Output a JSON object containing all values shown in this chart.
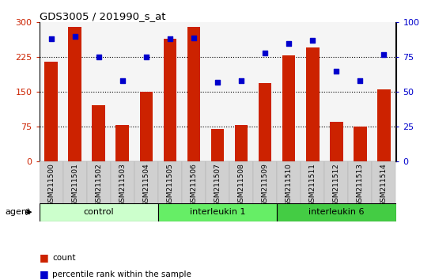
{
  "title": "GDS3005 / 201990_s_at",
  "samples": [
    "GSM211500",
    "GSM211501",
    "GSM211502",
    "GSM211503",
    "GSM211504",
    "GSM211505",
    "GSM211506",
    "GSM211507",
    "GSM211508",
    "GSM211509",
    "GSM211510",
    "GSM211511",
    "GSM211512",
    "GSM211513",
    "GSM211514"
  ],
  "counts": [
    215,
    290,
    120,
    78,
    150,
    265,
    290,
    70,
    78,
    168,
    228,
    245,
    85,
    75,
    155
  ],
  "percentile_ranks": [
    88,
    90,
    75,
    58,
    75,
    88,
    89,
    57,
    58,
    78,
    85,
    87,
    65,
    58,
    77
  ],
  "groups": [
    {
      "label": "control",
      "start": 0,
      "end": 5,
      "color": "#ccffcc"
    },
    {
      "label": "interleukin 1",
      "start": 5,
      "end": 10,
      "color": "#66ee66"
    },
    {
      "label": "interleukin 6",
      "start": 10,
      "end": 15,
      "color": "#44cc44"
    }
  ],
  "bar_color": "#cc2200",
  "dot_color": "#0000cc",
  "ylim_left": [
    0,
    300
  ],
  "ylim_right": [
    0,
    100
  ],
  "yticks_left": [
    0,
    75,
    150,
    225,
    300
  ],
  "yticks_right": [
    0,
    25,
    50,
    75,
    100
  ],
  "grid_values": [
    75,
    150,
    225
  ],
  "plot_bg": "#f5f5f5",
  "tick_label_fontsize": 6.5,
  "bar_width": 0.55
}
